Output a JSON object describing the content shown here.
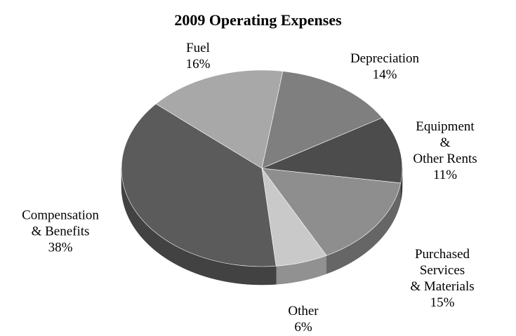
{
  "chart_data": {
    "type": "pie",
    "title": "2009 Operating Expenses",
    "categories": [
      "Fuel",
      "Depreciation",
      "Equipment &\nOther Rents",
      "Purchased Services\n& Materials",
      "Other",
      "Compensation\n& Benefits"
    ],
    "values": [
      16,
      14,
      11,
      15,
      6,
      38
    ],
    "value_labels": [
      "16%",
      "14%",
      "11%",
      "15%",
      "6%",
      "38%"
    ],
    "colors": [
      "#a8a8a8",
      "#7f7f7f",
      "#4c4c4c",
      "#8e8e8e",
      "#c9c9c9",
      "#5b5b5b"
    ]
  }
}
